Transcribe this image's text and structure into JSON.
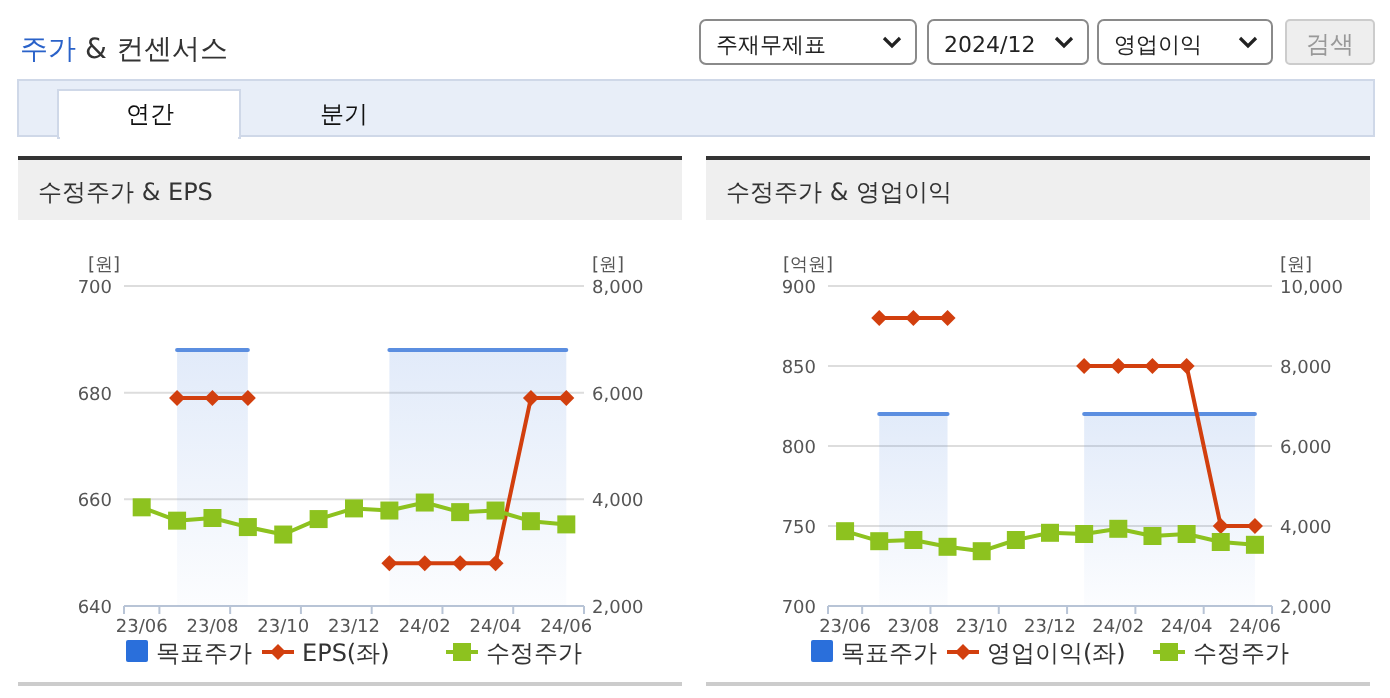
{
  "chart_data": [
    {
      "type": "other",
      "title": "주가 & 컨센서스",
      "annotations": [
        "주재무제표",
        "2024/12",
        "영업이익",
        "검색",
        "연간",
        "분기"
      ]
    },
    {
      "type": "line",
      "title": "수정주가 & EPS",
      "ylabel": "[원]",
      "y2label": "[원]",
      "categories": [
        "23/06",
        null,
        "23/08",
        null,
        "23/10",
        null,
        "23/12",
        null,
        "24/02",
        null,
        "24/04",
        null,
        "24/06"
      ],
      "ylim": [
        640,
        700
      ],
      "yticks": [
        640,
        660,
        680,
        700
      ],
      "y2lim": [
        2000,
        8000
      ],
      "y2ticks": [
        {
          "value": 2000,
          "label": "2,000"
        },
        {
          "value": 4000,
          "label": "4,000"
        },
        {
          "value": 6000,
          "label": "6,000"
        },
        {
          "value": 8000,
          "label": "8,000"
        }
      ],
      "grid": "y",
      "legend": "bottom",
      "series": [
        {
          "name": "목표주가",
          "type": "area",
          "axis": "y2",
          "color": "#5b8ee0",
          "marker": "none",
          "values": [
            null,
            6800,
            6800,
            6800,
            null,
            null,
            null,
            6800,
            6800,
            6800,
            6800,
            6800,
            6800
          ]
        },
        {
          "name": "EPS(좌)",
          "type": "line",
          "color": "#d23f0e",
          "marker": "diamond",
          "values": [
            null,
            679,
            679,
            679,
            null,
            null,
            null,
            648,
            648,
            648,
            648,
            679,
            679
          ]
        },
        {
          "name": "수정주가",
          "type": "line",
          "axis": "y2",
          "color": "#8dc21f",
          "marker": "square",
          "values": [
            3850,
            3600,
            3650,
            3480,
            3340,
            3630,
            3830,
            3790,
            3940,
            3760,
            3790,
            3590,
            3530
          ]
        }
      ]
    },
    {
      "type": "line",
      "title": "수정주가 & 영업이익",
      "ylabel": "[억원]",
      "y2label": "[원]",
      "categories": [
        "23/06",
        null,
        "23/08",
        null,
        "23/10",
        null,
        "23/12",
        null,
        "24/02",
        null,
        "24/04",
        null,
        "24/06"
      ],
      "ylim": [
        700,
        900
      ],
      "yticks": [
        700,
        750,
        800,
        850,
        900
      ],
      "y2lim": [
        2000,
        10000
      ],
      "y2ticks": [
        {
          "value": 2000,
          "label": "2,000"
        },
        {
          "value": 4000,
          "label": "4,000"
        },
        {
          "value": 6000,
          "label": "6,000"
        },
        {
          "value": 8000,
          "label": "8,000"
        },
        {
          "value": 10000,
          "label": "10,000"
        }
      ],
      "grid": "y",
      "legend": "bottom",
      "series": [
        {
          "name": "목표주가",
          "type": "area",
          "axis": "y2",
          "color": "#5b8ee0",
          "marker": "none",
          "values": [
            null,
            6800,
            6800,
            6800,
            null,
            null,
            null,
            6800,
            6800,
            6800,
            6800,
            6800,
            6800
          ]
        },
        {
          "name": "영업이익(좌)",
          "type": "line",
          "color": "#d23f0e",
          "marker": "diamond",
          "values": [
            null,
            880,
            880,
            880,
            null,
            null,
            null,
            850,
            850,
            850,
            850,
            750,
            750
          ]
        },
        {
          "name": "수정주가",
          "type": "line",
          "axis": "y2",
          "color": "#8dc21f",
          "marker": "square",
          "values": [
            3870,
            3620,
            3650,
            3480,
            3370,
            3650,
            3830,
            3800,
            3930,
            3750,
            3800,
            3600,
            3530
          ]
        }
      ]
    }
  ]
}
